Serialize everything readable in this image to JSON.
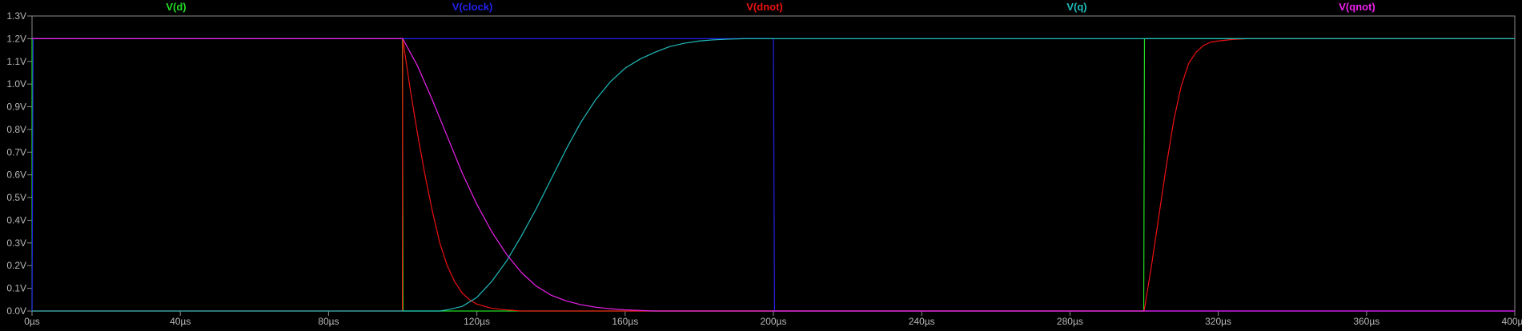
{
  "chart_data": {
    "type": "line",
    "title": "",
    "xlabel": "",
    "ylabel": "",
    "xlim": [
      0,
      400
    ],
    "ylim": [
      0,
      1.3
    ],
    "grid": false,
    "legend_placement": "top",
    "x_unit": "µs",
    "y_unit": "V",
    "x_ticks": [
      0,
      40,
      80,
      120,
      160,
      200,
      240,
      280,
      320,
      360,
      400
    ],
    "x_tick_labels": [
      "0µs",
      "40µs",
      "80µs",
      "120µs",
      "160µs",
      "200µs",
      "240µs",
      "280µs",
      "320µs",
      "360µs",
      "400µs"
    ],
    "y_ticks": [
      0,
      0.1,
      0.2,
      0.3,
      0.4,
      0.5,
      0.6,
      0.7,
      0.8,
      0.9,
      1.0,
      1.1,
      1.2,
      1.3
    ],
    "y_tick_labels": [
      "0.0V",
      "0.1V",
      "0.2V",
      "0.3V",
      "0.4V",
      "0.5V",
      "0.6V",
      "0.7V",
      "0.8V",
      "0.9V",
      "1.0V",
      "1.1V",
      "1.2V",
      "1.3V"
    ],
    "colors": {
      "background": "#000000",
      "frame": "#8c8c8c",
      "tick_text": "#b9b9b9"
    },
    "series": [
      {
        "name": "V(d)",
        "color": "#22dd22",
        "x": [
          0,
          0,
          99.9,
          100.1,
          299.9,
          300.1,
          400
        ],
        "y": [
          0,
          1.2,
          1.2,
          0,
          0,
          1.2,
          1.2
        ]
      },
      {
        "name": "V(clock)",
        "color": "#2222ee",
        "x": [
          0,
          0.3,
          200,
          200.3,
          400
        ],
        "y": [
          0,
          1.2,
          1.2,
          0,
          0
        ]
      },
      {
        "name": "V(dnot)",
        "color": "#ee1111",
        "x": [
          0,
          99.9,
          100,
          102,
          104,
          106,
          108,
          110,
          112,
          114,
          116,
          118,
          120,
          124,
          128,
          132,
          300,
          302,
          304,
          306,
          308,
          310,
          312,
          314,
          316,
          318,
          320,
          324,
          328,
          332,
          336,
          345,
          400
        ],
        "y": [
          0,
          0,
          1.2,
          0.98,
          0.78,
          0.6,
          0.44,
          0.3,
          0.2,
          0.13,
          0.08,
          0.05,
          0.03,
          0.012,
          0.005,
          0,
          0,
          0.2,
          0.42,
          0.64,
          0.84,
          0.99,
          1.09,
          1.14,
          1.17,
          1.185,
          1.19,
          1.197,
          1.2,
          1.2,
          1.2,
          1.2,
          1.2
        ]
      },
      {
        "name": "V(q)",
        "color": "#22bbbb",
        "x": [
          0,
          110,
          112,
          116,
          120,
          124,
          128,
          132,
          136,
          140,
          144,
          148,
          152,
          156,
          160,
          164,
          168,
          172,
          176,
          180,
          184,
          188,
          192,
          200,
          210,
          400
        ],
        "y": [
          0,
          0,
          0.005,
          0.02,
          0.06,
          0.13,
          0.22,
          0.33,
          0.45,
          0.58,
          0.71,
          0.83,
          0.93,
          1.01,
          1.07,
          1.11,
          1.14,
          1.165,
          1.18,
          1.19,
          1.195,
          1.198,
          1.2,
          1.2,
          1.2,
          1.2
        ]
      },
      {
        "name": "V(qnot)",
        "color": "#ee22ee",
        "x": [
          0,
          99.9,
          100,
          104,
          108,
          112,
          116,
          120,
          124,
          128,
          132,
          136,
          140,
          144,
          148,
          152,
          156,
          160,
          168,
          176,
          400
        ],
        "y": [
          1.2,
          1.2,
          1.2,
          1.08,
          0.93,
          0.77,
          0.61,
          0.47,
          0.35,
          0.25,
          0.17,
          0.11,
          0.07,
          0.045,
          0.028,
          0.017,
          0.01,
          0.005,
          0,
          0,
          0
        ]
      }
    ]
  }
}
